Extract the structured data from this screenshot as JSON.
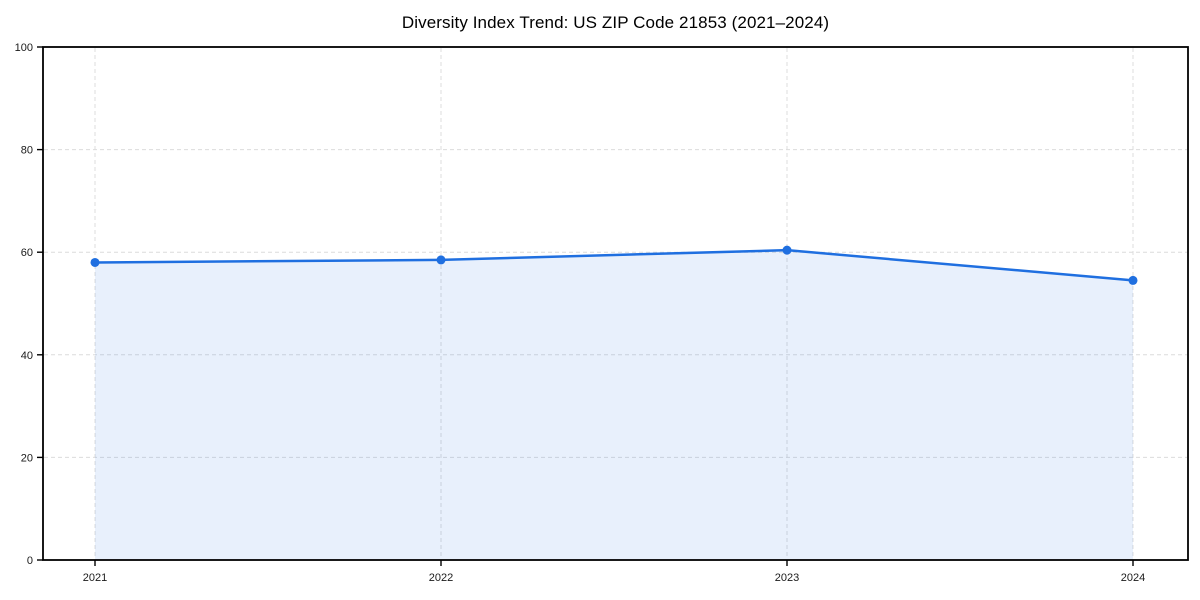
{
  "chart_data": {
    "type": "area",
    "title": "Diversity Index Trend: US ZIP Code 21853 (2021–2024)",
    "categories": [
      "2021",
      "2022",
      "2023",
      "2024"
    ],
    "series": [
      {
        "name": "Diversity Index",
        "values": [
          58,
          58.5,
          60.4,
          54.5
        ]
      }
    ],
    "xlabel": "",
    "ylabel": "",
    "ylim": [
      0,
      100
    ],
    "yticks": [
      0,
      20,
      40,
      60,
      80,
      100
    ],
    "grid": true,
    "grid_style": "dashed",
    "legend": "none",
    "colors": {
      "line": "#1f6fe0",
      "marker": "#1f6fe0",
      "fill": "#1f6fe0",
      "fill_opacity": 0.1,
      "grid": "#dcdcdc",
      "axis": "#000000",
      "tick_label": "#1a1a1a",
      "background": "#ffffff"
    }
  }
}
